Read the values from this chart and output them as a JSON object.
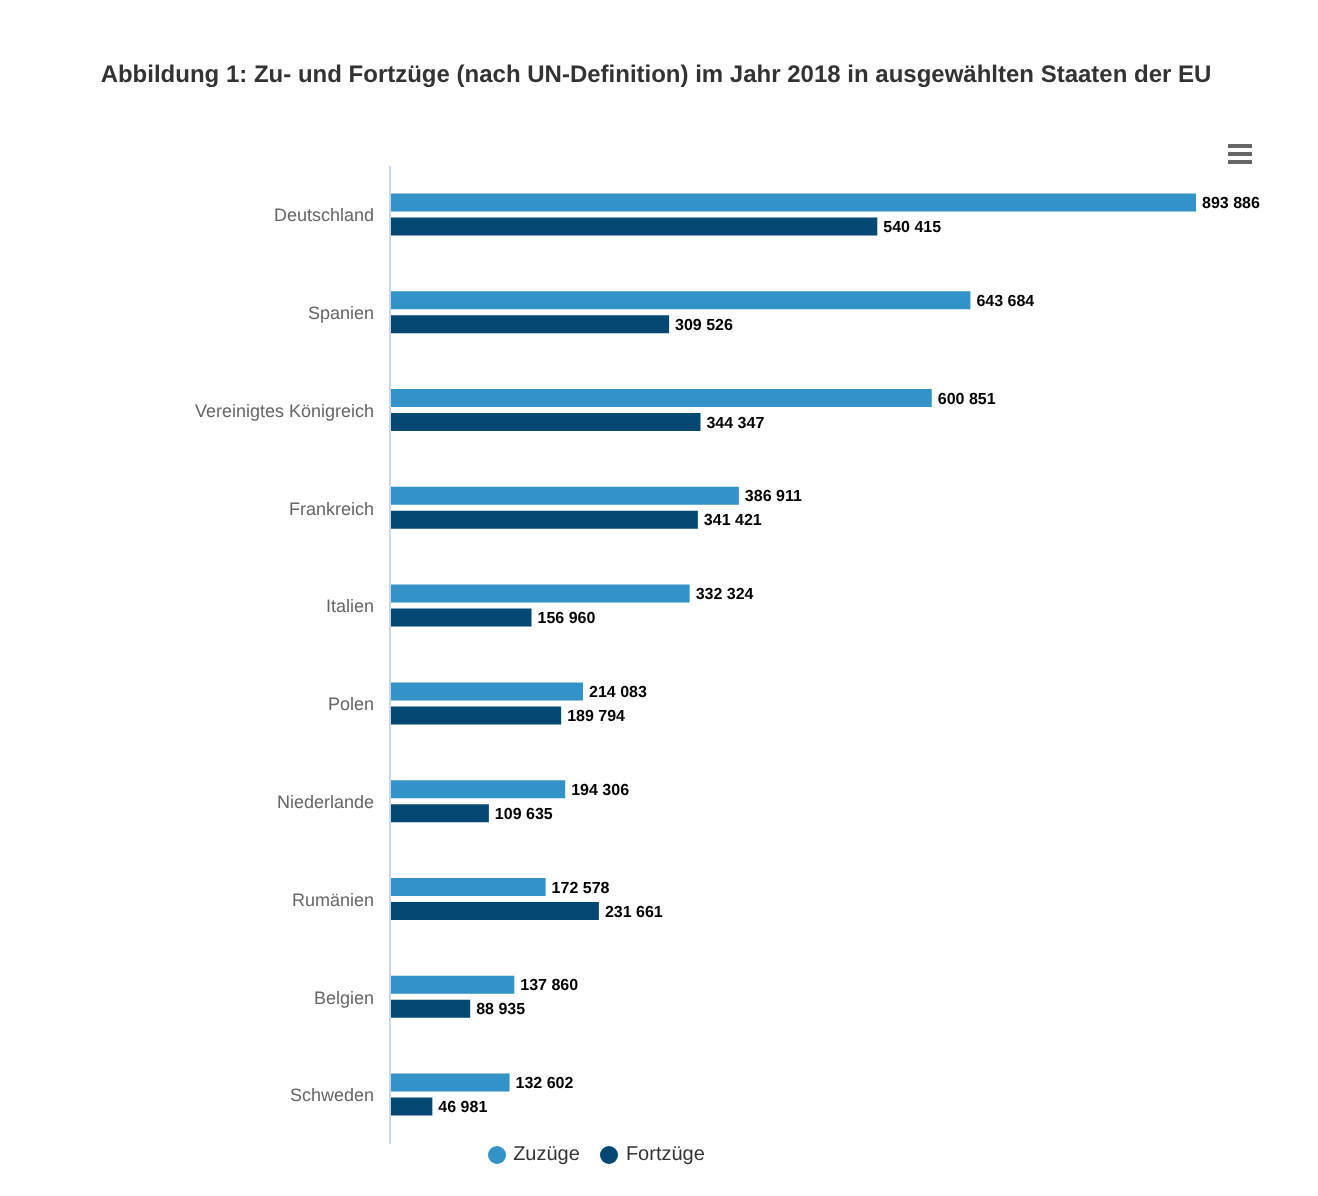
{
  "chart_data": {
    "type": "bar",
    "orientation": "horizontal",
    "title": "Abbildung 1: Zu- und Fortzüge (nach UN-Definition) im Jahr 2018 in ausgewählten Staaten der EU",
    "categories": [
      "Deutschland",
      "Spanien",
      "Vereinigtes Königreich",
      "Frankreich",
      "Italien",
      "Polen",
      "Niederlande",
      "Rumänien",
      "Belgien",
      "Schweden"
    ],
    "series": [
      {
        "name": "Zuzüge",
        "color": "#3392c8",
        "values": [
          893886,
          643684,
          600851,
          386911,
          332324,
          214083,
          194306,
          172578,
          137860,
          132602
        ],
        "value_labels": [
          "893 886",
          "643 684",
          "600 851",
          "386 911",
          "332 324",
          "214 083",
          "194 306",
          "172 578",
          "137 860",
          "132 602"
        ]
      },
      {
        "name": "Fortzüge",
        "color": "#024873",
        "values": [
          540415,
          309526,
          344347,
          341421,
          156960,
          189794,
          109635,
          231661,
          88935,
          46981
        ],
        "value_labels": [
          "540 415",
          "309 526",
          "344 347",
          "341 421",
          "156 960",
          "189 794",
          "109 635",
          "231 661",
          "88 935",
          "46 981"
        ]
      }
    ],
    "tick_labels": "y",
    "legend": "bottom"
  }
}
